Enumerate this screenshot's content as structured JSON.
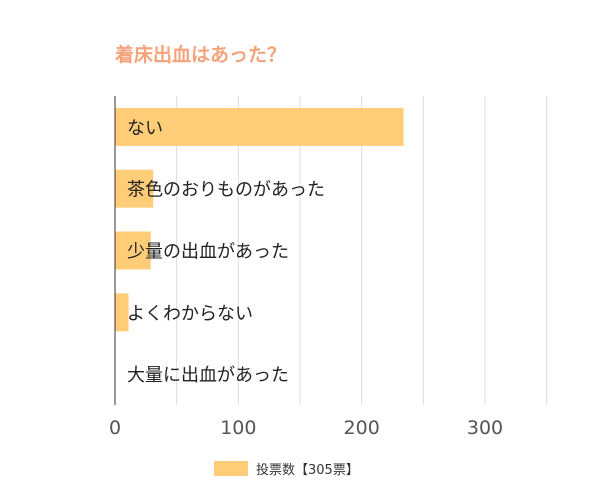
{
  "chart_data": {
    "type": "bar",
    "orientation": "horizontal",
    "title": "着床出血はあった？",
    "categories": [
      "ない",
      "茶色のおりものがあった",
      "少量の出血があった",
      "よくわからない",
      "大量に出血があった"
    ],
    "series": [
      {
        "name": "投票数【305票】",
        "values": [
          234,
          31,
          29,
          11,
          0
        ]
      }
    ],
    "xlim": [
      0,
      300
    ],
    "xticks": [
      0,
      100,
      200,
      300
    ],
    "grid": true,
    "legend": "bottom",
    "colors": {
      "bar": "#ffcd78",
      "title": "#f4a37b",
      "grid": "#dddddd",
      "axis": "#333333",
      "text": "#222222"
    }
  }
}
